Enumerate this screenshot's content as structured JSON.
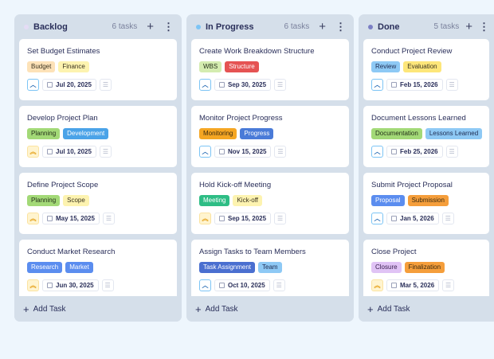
{
  "columns": [
    {
      "title": "Backlog",
      "count": "6 tasks",
      "dot": "#e5dcf5",
      "add_label": "Add Task",
      "cards": [
        {
          "title": "Set Budget Estimates",
          "priority": "high",
          "date": "Jul 20, 2025",
          "tags": [
            {
              "label": "Budget",
              "bg": "#fde2b8",
              "fg": "#3a3320"
            },
            {
              "label": "Finance",
              "bg": "#fdf3b0",
              "fg": "#3a3320"
            }
          ]
        },
        {
          "title": "Develop Project Plan",
          "priority": "urgent",
          "date": "Jul 10, 2025",
          "tags": [
            {
              "label": "Planning",
              "bg": "#a3d977",
              "fg": "#24301a"
            },
            {
              "label": "Development",
              "bg": "#4aa3e8",
              "fg": "#ffffff"
            }
          ]
        },
        {
          "title": "Define Project Scope",
          "priority": "urgent",
          "date": "May 15, 2025",
          "tags": [
            {
              "label": "Planning",
              "bg": "#a3d977",
              "fg": "#24301a"
            },
            {
              "label": "Scope",
              "bg": "#fdf3b0",
              "fg": "#3a3320"
            }
          ]
        },
        {
          "title": "Conduct Market Research",
          "priority": "urgent",
          "date": "Jun 30, 2025",
          "tags": [
            {
              "label": "Research",
              "bg": "#5b8def",
              "fg": "#ffffff"
            },
            {
              "label": "Market",
              "bg": "#5b8def",
              "fg": "#ffffff"
            }
          ]
        }
      ]
    },
    {
      "title": "In Progress",
      "count": "6 tasks",
      "dot": "#7cc4f5",
      "add_label": "Add Task",
      "cards": [
        {
          "title": "Create Work Breakdown Structure",
          "priority": "high",
          "date": "Sep 30, 2025",
          "tags": [
            {
              "label": "WBS",
              "bg": "#d4ecb0",
              "fg": "#24301a"
            },
            {
              "label": "Structure",
              "bg": "#e55353",
              "fg": "#ffffff"
            }
          ]
        },
        {
          "title": "Monitor Project Progress",
          "priority": "high",
          "date": "Nov 15, 2025",
          "tags": [
            {
              "label": "Monitoring",
              "bg": "#f5a623",
              "fg": "#3a2a10"
            },
            {
              "label": "Progress",
              "bg": "#4a7bd8",
              "fg": "#ffffff"
            }
          ]
        },
        {
          "title": "Hold Kick-off Meeting",
          "priority": "urgent",
          "date": "Sep 15, 2025",
          "tags": [
            {
              "label": "Meeting",
              "bg": "#2ebd85",
              "fg": "#ffffff"
            },
            {
              "label": "Kick-off",
              "bg": "#fdf3b0",
              "fg": "#3a3320"
            }
          ]
        },
        {
          "title": "Assign Tasks to Team Members",
          "priority": "high",
          "date": "Oct 10, 2025",
          "tags": [
            {
              "label": "Task Assignment",
              "bg": "#4a6fd0",
              "fg": "#ffffff"
            },
            {
              "label": "Team",
              "bg": "#8ec9f5",
              "fg": "#1e2a50"
            }
          ]
        }
      ]
    },
    {
      "title": "Done",
      "count": "5 tasks",
      "dot": "#7b7fc4",
      "add_label": "Add Task",
      "cards": [
        {
          "title": "Conduct Project Review",
          "priority": "high",
          "date": "Feb 15, 2026",
          "tags": [
            {
              "label": "Review",
              "bg": "#8ec9f5",
              "fg": "#1e2a50"
            },
            {
              "label": "Evaluation",
              "bg": "#fde67a",
              "fg": "#3a3320"
            }
          ]
        },
        {
          "title": "Document Lessons Learned",
          "priority": "high",
          "date": "Feb 25, 2026",
          "tags": [
            {
              "label": "Documentation",
              "bg": "#a3d977",
              "fg": "#24301a"
            },
            {
              "label": "Lessons Learned",
              "bg": "#8ec9f5",
              "fg": "#1e2a50"
            }
          ]
        },
        {
          "title": "Submit Project Proposal",
          "priority": "high",
          "date": "Jan 5, 2026",
          "tags": [
            {
              "label": "Proposal",
              "bg": "#5b8def",
              "fg": "#ffffff"
            },
            {
              "label": "Submission",
              "bg": "#f59e3b",
              "fg": "#3a2a10"
            }
          ]
        },
        {
          "title": "Close Project",
          "priority": "urgent",
          "date": "Mar 5, 2026",
          "tags": [
            {
              "label": "Closure",
              "bg": "#e0c3f5",
              "fg": "#3a2050"
            },
            {
              "label": "Finalization",
              "bg": "#f59e3b",
              "fg": "#3a2a10"
            }
          ]
        }
      ]
    }
  ]
}
